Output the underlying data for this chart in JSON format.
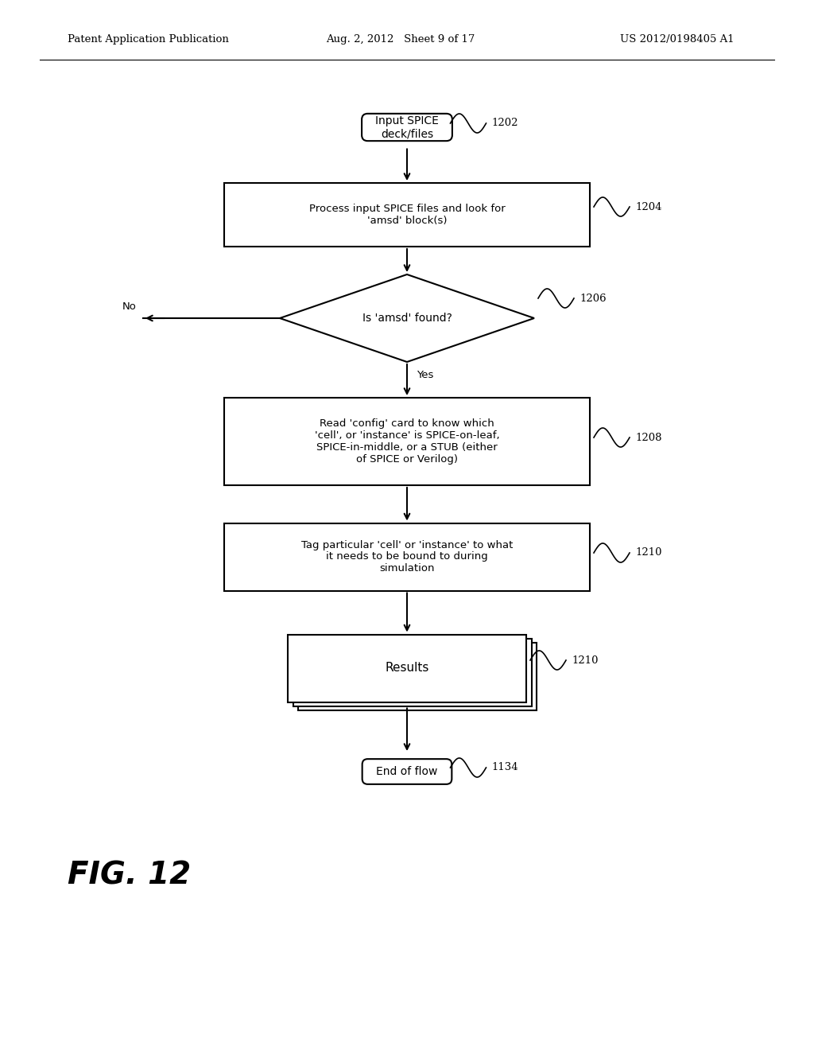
{
  "bg_color": "#ffffff",
  "header_left": "Patent Application Publication",
  "header_mid": "Aug. 2, 2012   Sheet 9 of 17",
  "header_right": "US 2012/0198405 A1",
  "fig_label": "FIG. 12",
  "start_text": "Input SPICE\ndeck/files",
  "start_label": "1202",
  "box1_text": "Process input SPICE files and look for\n'amsd' block(s)",
  "box1_label": "1204",
  "diamond_text": "Is 'amsd' found?",
  "diamond_label": "1206",
  "box2_text": "Read 'config' card to know which\n'cell', or 'instance' is SPICE-on-leaf,\nSPICE-in-middle, or a STUB (either\nof SPICE or Verilog)",
  "box2_label": "1208",
  "box3_text": "Tag particular 'cell' or 'instance' to what\nit needs to be bound to during\nsimulation",
  "box3_label": "1210",
  "results_text": "Results",
  "results_label": "1210",
  "end_text": "End of flow",
  "end_label": "1134"
}
